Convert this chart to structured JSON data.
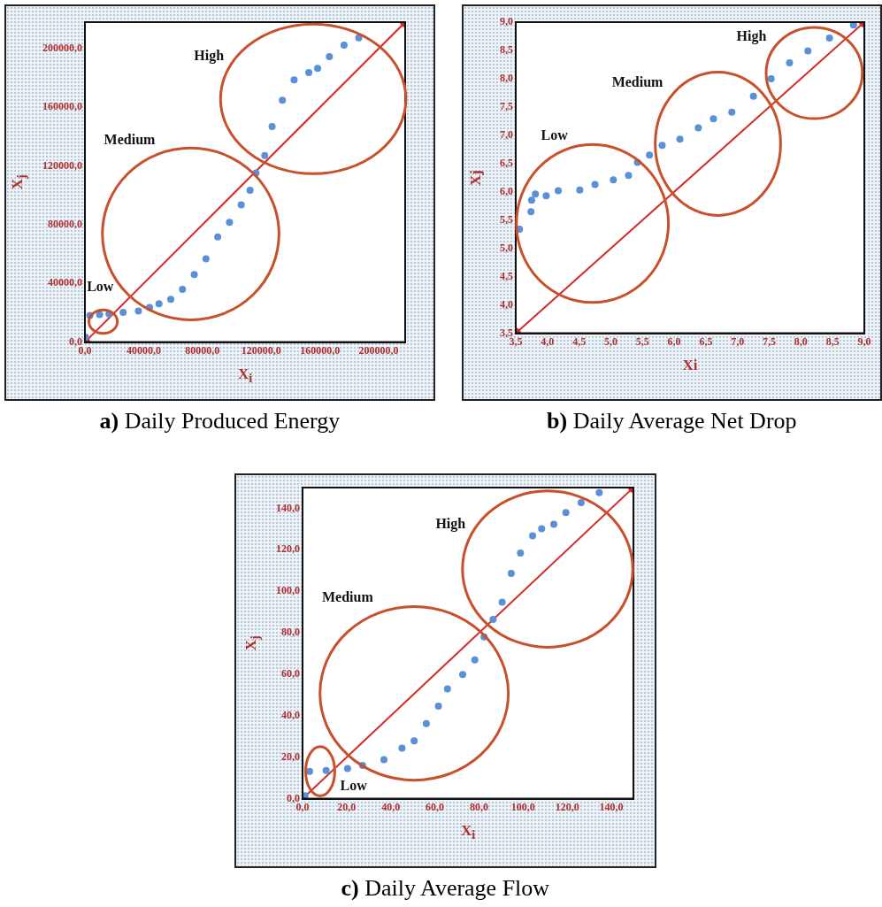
{
  "chart_data": [
    {
      "type": "scatter",
      "title": "a) Daily Produced Energy",
      "xlabel": "X$_{i}$",
      "ylabel": "X$_{j}$",
      "marker": "circle",
      "xlim": [
        0,
        218000
      ],
      "ylim": [
        0,
        218000
      ],
      "xticks": [
        {
          "value": 0,
          "label": "0,0"
        },
        {
          "value": 40000,
          "label": "40000,0"
        },
        {
          "value": 80000,
          "label": "80000,0"
        },
        {
          "value": 120000,
          "label": "120000,0"
        },
        {
          "value": 160000,
          "label": "160000,0"
        },
        {
          "value": 200000,
          "label": "200000,0"
        }
      ],
      "yticks": [
        {
          "value": 0,
          "label": "0,0"
        },
        {
          "value": 40000,
          "label": "40000,0"
        },
        {
          "value": 80000,
          "label": "80000,0"
        },
        {
          "value": 120000,
          "label": "120000,0"
        },
        {
          "value": 160000,
          "label": "160000,0"
        },
        {
          "value": 200000,
          "label": "200000,0"
        }
      ],
      "series": [
        {
          "type": "scatter",
          "color": "#5b8fd6",
          "x": [
            400,
            3400,
            10000,
            16400,
            26000,
            36400,
            44000,
            50400,
            58400,
            66400,
            74400,
            82400,
            90400,
            98400,
            106400,
            112400,
            116400,
            122400,
            127400,
            134400,
            142400,
            152400,
            158400,
            166400,
            176400,
            186400
          ],
          "values": [
            3400,
            18200,
            18700,
            19200,
            20200,
            21200,
            23500,
            26100,
            29100,
            36000,
            46000,
            56800,
            71700,
            81600,
            93500,
            103400,
            115200,
            127100,
            146900,
            164800,
            178600,
            183600,
            186500,
            194500,
            202400,
            207300
          ]
        },
        {
          "type": "line",
          "color": "#d42a2a",
          "x": [
            0,
            218000
          ],
          "values": [
            0,
            218000
          ]
        }
      ],
      "annotations": [
        "High",
        "Medium",
        "Low"
      ]
    },
    {
      "type": "scatter",
      "title": "b) Daily Average Net Drop",
      "xlabel": "Xi",
      "ylabel": "Xj",
      "marker": "circle",
      "xlim": [
        3.5,
        9.0
      ],
      "ylim": [
        3.5,
        9.0
      ],
      "xticks": [
        {
          "value": 3.5,
          "label": "3,5"
        },
        {
          "value": 4,
          "label": "4,0"
        },
        {
          "value": 4.5,
          "label": "4,5"
        },
        {
          "value": 5,
          "label": "5,0"
        },
        {
          "value": 5.5,
          "label": "5,5"
        },
        {
          "value": 6,
          "label": "6,0"
        },
        {
          "value": 6.5,
          "label": "6,5"
        },
        {
          "value": 7,
          "label": "7,0"
        },
        {
          "value": 7.5,
          "label": "7,5"
        },
        {
          "value": 8,
          "label": "8,0"
        },
        {
          "value": 8.5,
          "label": "8,5"
        },
        {
          "value": 9,
          "label": "9,0"
        }
      ],
      "yticks": [
        {
          "value": 3.5,
          "label": "3,5"
        },
        {
          "value": 4,
          "label": "4,0"
        },
        {
          "value": 4.5,
          "label": "4,5"
        },
        {
          "value": 5,
          "label": "5,0"
        },
        {
          "value": 5.5,
          "label": "5,5"
        },
        {
          "value": 6,
          "label": "6,0"
        },
        {
          "value": 6.5,
          "label": "6,5"
        },
        {
          "value": 7,
          "label": "7,0"
        },
        {
          "value": 7.5,
          "label": "7,5"
        },
        {
          "value": 8,
          "label": "8,0"
        },
        {
          "value": 8.5,
          "label": "8,5"
        },
        {
          "value": 9,
          "label": "9,0"
        }
      ],
      "series": [
        {
          "type": "scatter",
          "color": "#5b8fd6",
          "x": [
            3.56,
            3.74,
            3.75,
            3.81,
            3.98,
            4.17,
            4.51,
            4.75,
            5.04,
            5.28,
            5.42,
            5.61,
            5.81,
            6.09,
            6.38,
            6.62,
            6.91,
            7.25,
            7.53,
            7.82,
            8.11,
            8.45,
            8.83
          ],
          "values": [
            5.34,
            5.65,
            5.85,
            5.96,
            5.93,
            6.02,
            6.03,
            6.13,
            6.21,
            6.29,
            6.52,
            6.65,
            6.82,
            6.93,
            7.13,
            7.29,
            7.41,
            7.69,
            8.0,
            8.28,
            8.49,
            8.72,
            8.95
          ]
        },
        {
          "type": "line",
          "color": "#d42a2a",
          "x": [
            3.5,
            9.0
          ],
          "values": [
            3.5,
            9.0
          ]
        }
      ],
      "annotations": [
        "High",
        "Medium",
        "Low"
      ]
    },
    {
      "type": "scatter",
      "title": "c) Daily Average Flow",
      "xlabel": "X$_{i}$",
      "ylabel": "X$_{j}$",
      "marker": "circle",
      "xlim": [
        0,
        150
      ],
      "ylim": [
        0,
        150
      ],
      "xticks": [
        {
          "value": 0,
          "label": "0,0"
        },
        {
          "value": 20,
          "label": "20,0"
        },
        {
          "value": 40,
          "label": "40,0"
        },
        {
          "value": 60,
          "label": "60,0"
        },
        {
          "value": 80,
          "label": "80,0"
        },
        {
          "value": 100,
          "label": "100,0"
        },
        {
          "value": 120,
          "label": "120,0"
        },
        {
          "value": 140,
          "label": "140,0"
        }
      ],
      "yticks": [
        {
          "value": 0,
          "label": "0,0"
        },
        {
          "value": 20,
          "label": "20,0"
        },
        {
          "value": 40,
          "label": "40,0"
        },
        {
          "value": 60,
          "label": "60,0"
        },
        {
          "value": 80,
          "label": "80,0"
        },
        {
          "value": 100,
          "label": "100,0"
        },
        {
          "value": 120,
          "label": "120,0"
        },
        {
          "value": 140,
          "label": "140,0"
        }
      ],
      "series": [
        {
          "type": "scatter",
          "color": "#5b8fd6",
          "x": [
            1.1,
            3.2,
            10.7,
            20.4,
            27.2,
            36.9,
            45.1,
            50.6,
            56.1,
            61.6,
            65.7,
            72.6,
            78.1,
            82.3,
            86.4,
            90.5,
            94.6,
            98.8,
            104.3,
            108.4,
            113.9,
            119.4,
            126.3,
            134.5
          ],
          "values": [
            1.4,
            13.2,
            13.6,
            14.6,
            16,
            18.8,
            24.4,
            27.9,
            36.2,
            44.6,
            52.9,
            59.9,
            66.9,
            78,
            86.4,
            94.7,
            108.6,
            118.4,
            126.7,
            130.2,
            132.3,
            137.9,
            142.8,
            147.6
          ]
        },
        {
          "type": "line",
          "color": "#d42a2a",
          "x": [
            0,
            150
          ],
          "values": [
            0,
            150
          ]
        }
      ],
      "annotations": [
        "High",
        "Medium",
        "Low"
      ]
    }
  ]
}
